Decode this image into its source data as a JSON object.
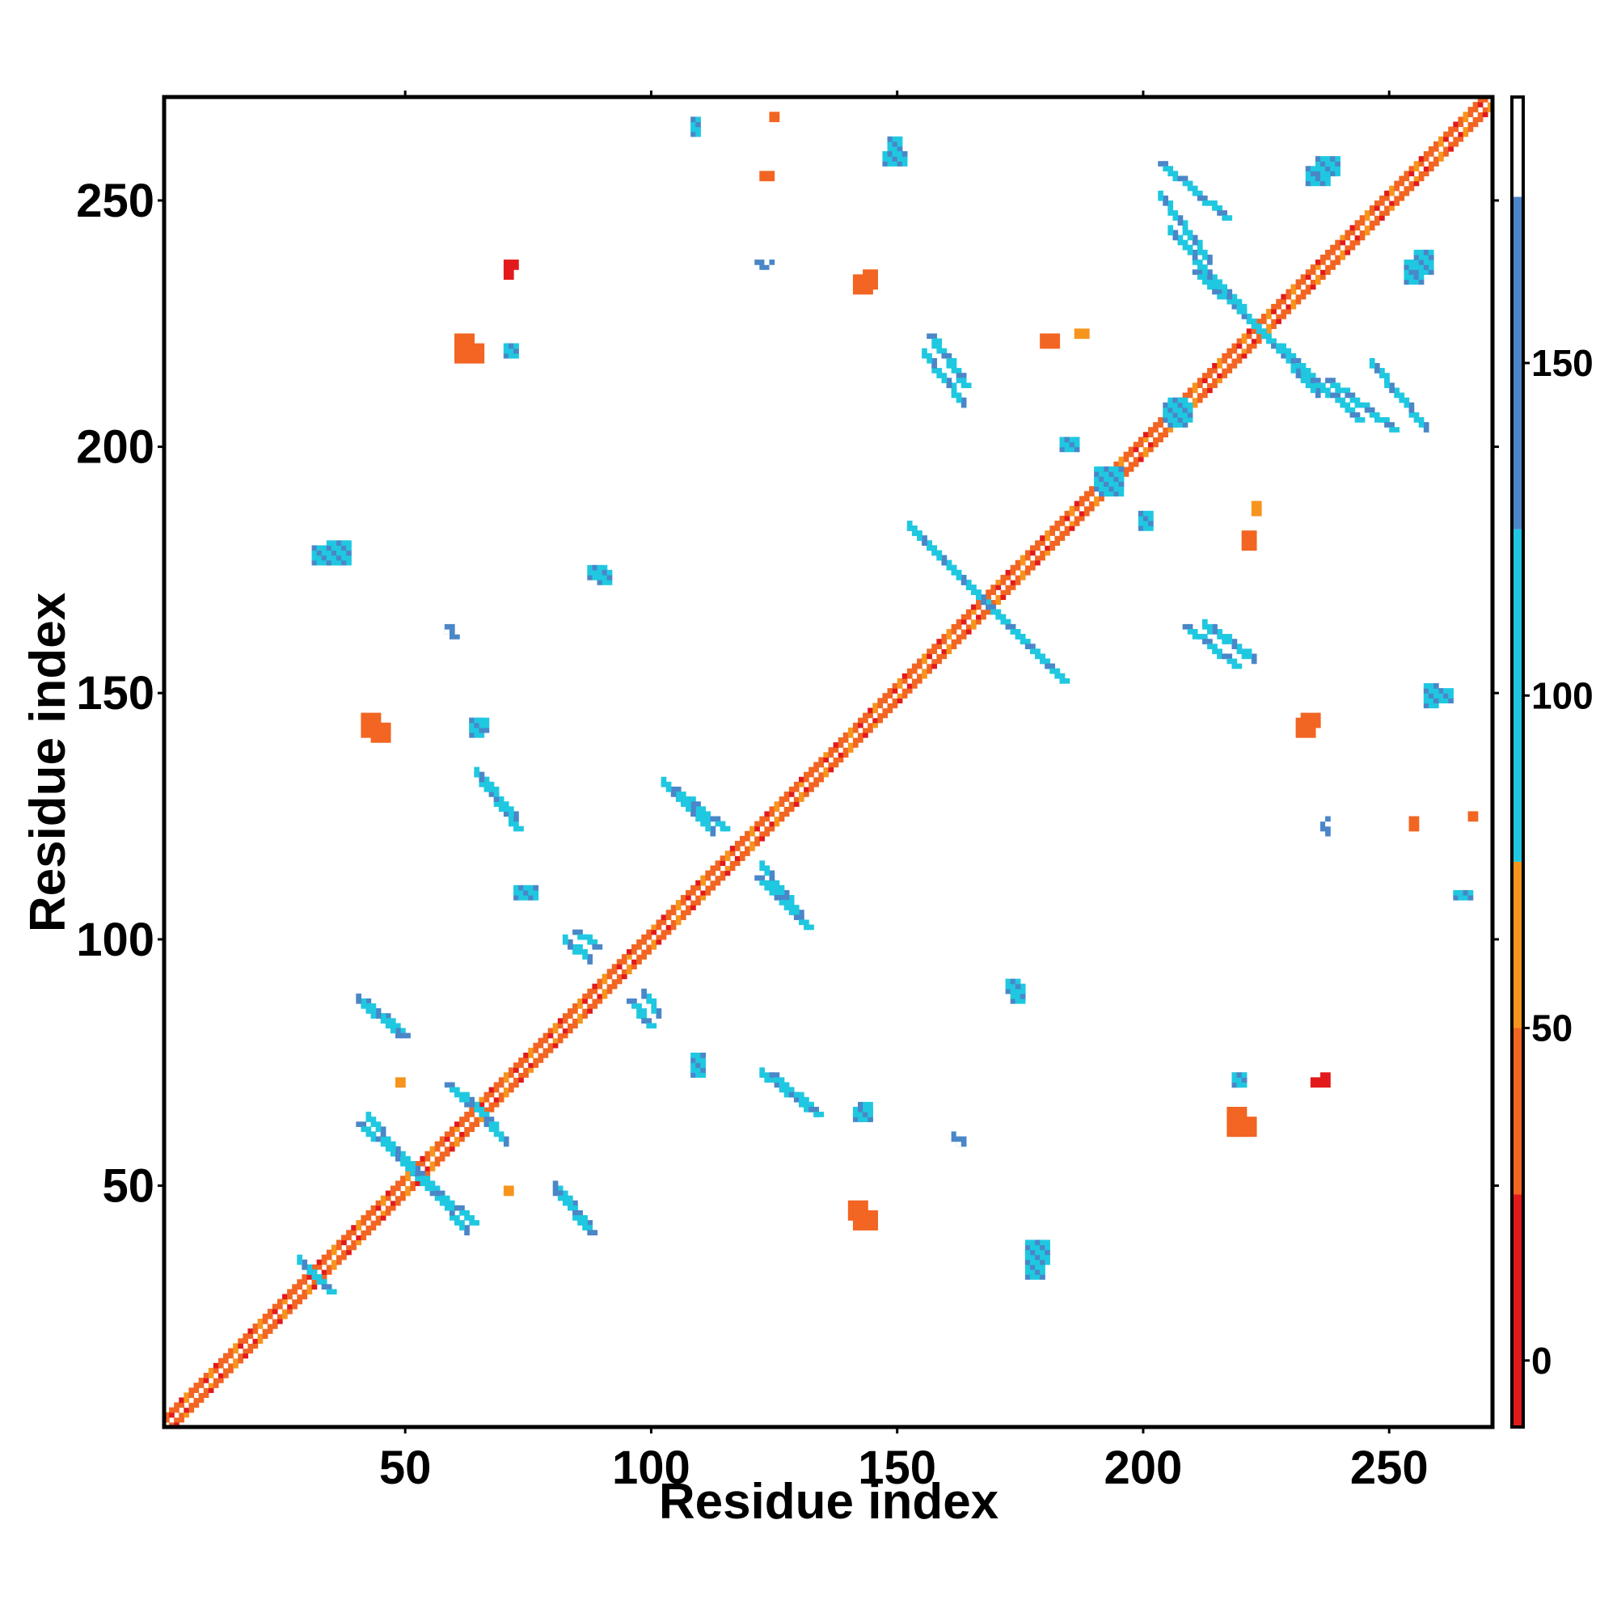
{
  "chart_data": {
    "type": "heatmap",
    "title": "",
    "xlabel": "Residue index",
    "ylabel": "Residue index",
    "xlim": [
      1,
      271
    ],
    "ylim": [
      1,
      271
    ],
    "xticks": [
      50,
      100,
      150,
      200,
      250
    ],
    "yticks": [
      50,
      100,
      150,
      200,
      250
    ],
    "grid": false,
    "colorbar": {
      "range": [
        -10,
        190
      ],
      "ticks": [
        0,
        50,
        100,
        150
      ],
      "bands": [
        {
          "from": -10,
          "to": 25,
          "color": "#e31a1c"
        },
        {
          "from": 25,
          "to": 50,
          "color": "#f26522"
        },
        {
          "from": 50,
          "to": 75,
          "color": "#f7941d"
        },
        {
          "from": 75,
          "to": 125,
          "color": "#1fc8e0"
        },
        {
          "from": 125,
          "to": 175,
          "color": "#4a86c8"
        },
        {
          "from": 175,
          "to": 190,
          "color": "#ffffff"
        }
      ]
    },
    "diagonal": {
      "from": 1,
      "to": 271,
      "value": 40
    },
    "segments": [
      {
        "x1": 40,
        "y1": 62,
        "x2": 63,
        "y2": 42,
        "value": 120
      },
      {
        "x1": 41,
        "y1": 87,
        "x2": 49,
        "y2": 80,
        "value": 120
      },
      {
        "x1": 58,
        "y1": 70,
        "x2": 67,
        "y2": 62,
        "value": 120
      },
      {
        "x1": 80,
        "y1": 48,
        "x2": 87,
        "y2": 40,
        "value": 120
      },
      {
        "x1": 84,
        "y1": 101,
        "x2": 88,
        "y2": 98,
        "value": 120
      },
      {
        "x1": 95,
        "y1": 87,
        "x2": 99,
        "y2": 82,
        "value": 120
      },
      {
        "x1": 64,
        "y1": 133,
        "x2": 72,
        "y2": 122,
        "value": 120
      },
      {
        "x1": 104,
        "y1": 130,
        "x2": 114,
        "y2": 122,
        "value": 120
      },
      {
        "x1": 121,
        "y1": 112,
        "x2": 131,
        "y2": 102,
        "value": 120
      },
      {
        "x1": 124,
        "y1": 72,
        "x2": 133,
        "y2": 64,
        "value": 120
      },
      {
        "x1": 152,
        "y1": 183,
        "x2": 183,
        "y2": 152,
        "value": 120
      },
      {
        "x1": 208,
        "y1": 163,
        "x2": 218,
        "y2": 155,
        "value": 120
      },
      {
        "x1": 156,
        "y1": 222,
        "x2": 163,
        "y2": 212,
        "value": 120
      },
      {
        "x1": 210,
        "y1": 235,
        "x2": 243,
        "y2": 205,
        "value": 120
      },
      {
        "x1": 203,
        "y1": 257,
        "x2": 216,
        "y2": 246,
        "value": 120
      },
      {
        "x1": 237,
        "y1": 213,
        "x2": 250,
        "y2": 203,
        "value": 120
      },
      {
        "x1": 29,
        "y1": 33,
        "x2": 34,
        "y2": 28,
        "value": 120
      }
    ],
    "blobs": [
      {
        "x": 60,
        "y": 217,
        "w": 6,
        "h": 4,
        "value": 40
      },
      {
        "x": 70,
        "y": 218,
        "w": 3,
        "h": 3,
        "value": 120
      },
      {
        "x": 31,
        "y": 176,
        "w": 6,
        "h": 4,
        "value": 120
      },
      {
        "x": 87,
        "y": 173,
        "w": 4,
        "h": 3,
        "value": 120
      },
      {
        "x": 58,
        "y": 161,
        "w": 3,
        "h": 2,
        "value": 145
      },
      {
        "x": 43,
        "y": 140,
        "w": 4,
        "h": 4,
        "value": 40
      },
      {
        "x": 63,
        "y": 142,
        "w": 4,
        "h": 3,
        "value": 120
      },
      {
        "x": 72,
        "y": 108,
        "w": 5,
        "h": 3,
        "value": 120
      },
      {
        "x": 48,
        "y": 70,
        "w": 2,
        "h": 2,
        "value": 70
      },
      {
        "x": 172,
        "y": 89,
        "w": 3,
        "h": 3,
        "value": 120
      },
      {
        "x": 141,
        "y": 63,
        "w": 4,
        "h": 3,
        "value": 120
      },
      {
        "x": 141,
        "y": 41,
        "w": 5,
        "h": 4,
        "value": 40
      },
      {
        "x": 176,
        "y": 34,
        "w": 5,
        "h": 5,
        "value": 120
      },
      {
        "x": 162,
        "y": 58,
        "w": 2,
        "h": 2,
        "value": 145
      },
      {
        "x": 218,
        "y": 60,
        "w": 5,
        "h": 4,
        "value": 40
      },
      {
        "x": 218,
        "y": 70,
        "w": 3,
        "h": 3,
        "value": 120
      },
      {
        "x": 234,
        "y": 70,
        "w": 2,
        "h": 2,
        "value": 10
      },
      {
        "x": 232,
        "y": 143,
        "w": 4,
        "h": 3,
        "value": 40
      },
      {
        "x": 259,
        "y": 148,
        "w": 4,
        "h": 3,
        "value": 120
      },
      {
        "x": 204,
        "y": 205,
        "w": 6,
        "h": 4,
        "value": 120
      },
      {
        "x": 220,
        "y": 179,
        "w": 3,
        "h": 4,
        "value": 40
      },
      {
        "x": 141,
        "y": 231,
        "w": 4,
        "h": 4,
        "value": 40
      },
      {
        "x": 147,
        "y": 257,
        "w": 5,
        "h": 3,
        "value": 120
      },
      {
        "x": 233,
        "y": 253,
        "w": 5,
        "h": 4,
        "value": 120
      },
      {
        "x": 255,
        "y": 235,
        "w": 4,
        "h": 5,
        "value": 120
      },
      {
        "x": 70,
        "y": 236,
        "w": 3,
        "h": 2,
        "value": 10
      },
      {
        "x": 122,
        "y": 254,
        "w": 3,
        "h": 2,
        "value": 40
      },
      {
        "x": 121,
        "y": 236,
        "w": 4,
        "h": 2,
        "value": 145
      },
      {
        "x": 186,
        "y": 222,
        "w": 3,
        "h": 2,
        "value": 60
      },
      {
        "x": 199,
        "y": 183,
        "w": 3,
        "h": 4,
        "value": 120
      },
      {
        "x": 190,
        "y": 191,
        "w": 6,
        "h": 5,
        "value": 120
      },
      {
        "x": 266,
        "y": 124,
        "w": 2,
        "h": 2,
        "value": 40
      },
      {
        "x": 263,
        "y": 108,
        "w": 4,
        "h": 2,
        "value": 120
      }
    ]
  }
}
